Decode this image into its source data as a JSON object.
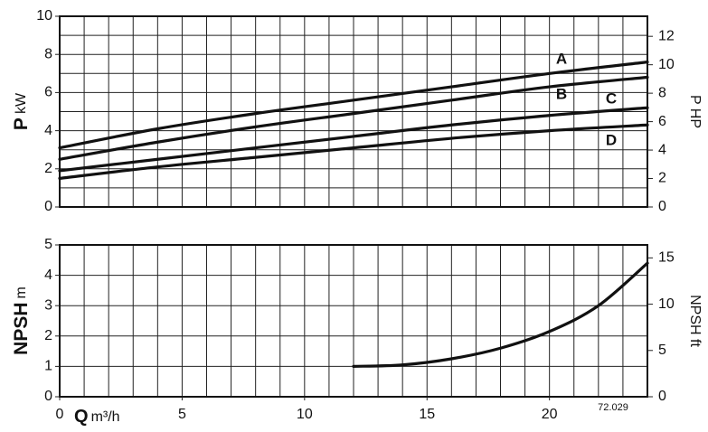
{
  "chart_data": [
    {
      "type": "line",
      "ylabel_symbol": "P",
      "ylabel_unit": "kW",
      "y2label": "P HP",
      "xlim": [
        0,
        24
      ],
      "ylim": [
        0,
        10
      ],
      "yticks": [
        0,
        2,
        4,
        6,
        8,
        10
      ],
      "y2lim": [
        0,
        13.41
      ],
      "y2ticks": [
        0,
        2,
        4,
        6,
        8,
        10,
        12
      ],
      "grid": true,
      "grid_x_step": 1,
      "grid_y_step": 1,
      "x": [
        0,
        4,
        8,
        12,
        16,
        20,
        24
      ],
      "series": [
        {
          "name": "A",
          "color": "#111111",
          "values": [
            3.1,
            4.1,
            4.9,
            5.6,
            6.3,
            7.0,
            7.6
          ]
        },
        {
          "name": "B",
          "color": "#111111",
          "values": [
            2.5,
            3.4,
            4.2,
            4.9,
            5.6,
            6.3,
            6.8
          ]
        },
        {
          "name": "C",
          "color": "#111111",
          "values": [
            1.9,
            2.5,
            3.1,
            3.7,
            4.3,
            4.8,
            5.2
          ]
        },
        {
          "name": "D",
          "color": "#111111",
          "values": [
            1.5,
            2.1,
            2.6,
            3.1,
            3.6,
            4.0,
            4.3
          ]
        }
      ]
    },
    {
      "type": "line",
      "ylabel_symbol": "NPSH",
      "ylabel_unit": "m",
      "y2label": "NPSH ft",
      "xlabel_symbol": "Q",
      "xlabel_unit": "m³/h",
      "annotation": "72.029",
      "xlim": [
        0,
        24
      ],
      "xticks": [
        0,
        5,
        10,
        15,
        20
      ],
      "ylim": [
        0,
        5
      ],
      "yticks": [
        0,
        1,
        2,
        3,
        4,
        5
      ],
      "y2lim": [
        0,
        16.4
      ],
      "y2ticks": [
        0,
        5,
        10,
        15
      ],
      "grid": true,
      "grid_x_step": 1,
      "grid_y_step": 1,
      "x": [
        12,
        14,
        16,
        18,
        20,
        22,
        24
      ],
      "series": [
        {
          "color": "#111111",
          "values": [
            1.0,
            1.05,
            1.25,
            1.6,
            2.15,
            3.0,
            4.4
          ]
        }
      ]
    }
  ]
}
